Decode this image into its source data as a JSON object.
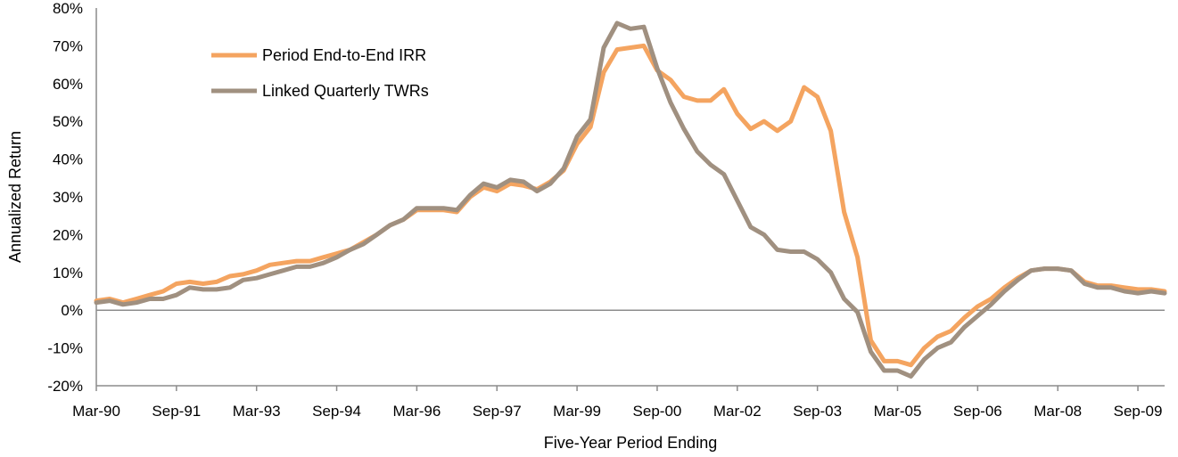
{
  "chart_data": {
    "type": "line",
    "title": "",
    "xlabel": "Five-Year Period Ending",
    "ylabel": "Annualized  Return",
    "ylim": [
      -20,
      80
    ],
    "y_ticks": [
      -20,
      -10,
      0,
      10,
      20,
      30,
      40,
      50,
      60,
      70,
      80
    ],
    "y_tick_labels": [
      "-20%",
      "-10%",
      "0%",
      "10%",
      "20%",
      "30%",
      "40%",
      "50%",
      "60%",
      "70%",
      "80%"
    ],
    "x_tick_labels": [
      "Mar-90",
      "Sep-91",
      "Mar-93",
      "Sep-94",
      "Mar-96",
      "Sep-97",
      "Mar-99",
      "Sep-00",
      "Mar-02",
      "Sep-03",
      "Mar-05",
      "Sep-06",
      "Mar-08",
      "Sep-09"
    ],
    "legend": {
      "position": "top-left"
    },
    "grid": false,
    "series": [
      {
        "name": "Period End-to-End IRR",
        "color": "#F4A460",
        "values": [
          2.5,
          3,
          2,
          3,
          4,
          5,
          7,
          7.5,
          7,
          7.5,
          9,
          9.5,
          10.5,
          12,
          12.5,
          13,
          13,
          14,
          15,
          16,
          18,
          20,
          22.5,
          24,
          26.5,
          26.5,
          26.5,
          26,
          30,
          32.5,
          31.5,
          33.5,
          33,
          32,
          34,
          37,
          44,
          48.5,
          63,
          69,
          69.5,
          70,
          63.5,
          61,
          56.5,
          55.5,
          55.5,
          58.5,
          52,
          48,
          50,
          47.5,
          50,
          59,
          56.5,
          47.5,
          26,
          14,
          -8,
          -13.5,
          -13.5,
          -14.5,
          -10,
          -7,
          -5.5,
          -2,
          1,
          3,
          6,
          8.5,
          10.5,
          11,
          11,
          10.5,
          7.5,
          6.5,
          6.5,
          6,
          5.5,
          5.5,
          5
        ]
      },
      {
        "name": "Linked Quarterly TWRs",
        "color": "#A09080",
        "values": [
          2,
          2.5,
          1.5,
          2,
          3,
          3,
          4,
          6,
          5.5,
          5.5,
          6,
          8,
          8.5,
          9.5,
          10.5,
          11.5,
          11.5,
          12.5,
          14,
          16,
          17.5,
          20,
          22.5,
          24,
          27,
          27,
          27,
          26.5,
          30.5,
          33.5,
          32.5,
          34.5,
          34,
          31.5,
          33.5,
          37.5,
          46,
          50.5,
          69.5,
          76,
          74.5,
          75,
          64,
          55,
          48,
          42,
          38.5,
          36,
          29,
          22,
          20,
          16,
          15.5,
          15.5,
          13.5,
          10,
          3,
          -0.5,
          -11,
          -16,
          -16,
          -17.5,
          -13,
          -10,
          -8.5,
          -4.5,
          -1.5,
          1.5,
          5,
          8,
          10.5,
          11,
          11,
          10.5,
          7,
          6,
          6,
          5,
          4.5,
          5,
          4.5
        ]
      }
    ]
  }
}
